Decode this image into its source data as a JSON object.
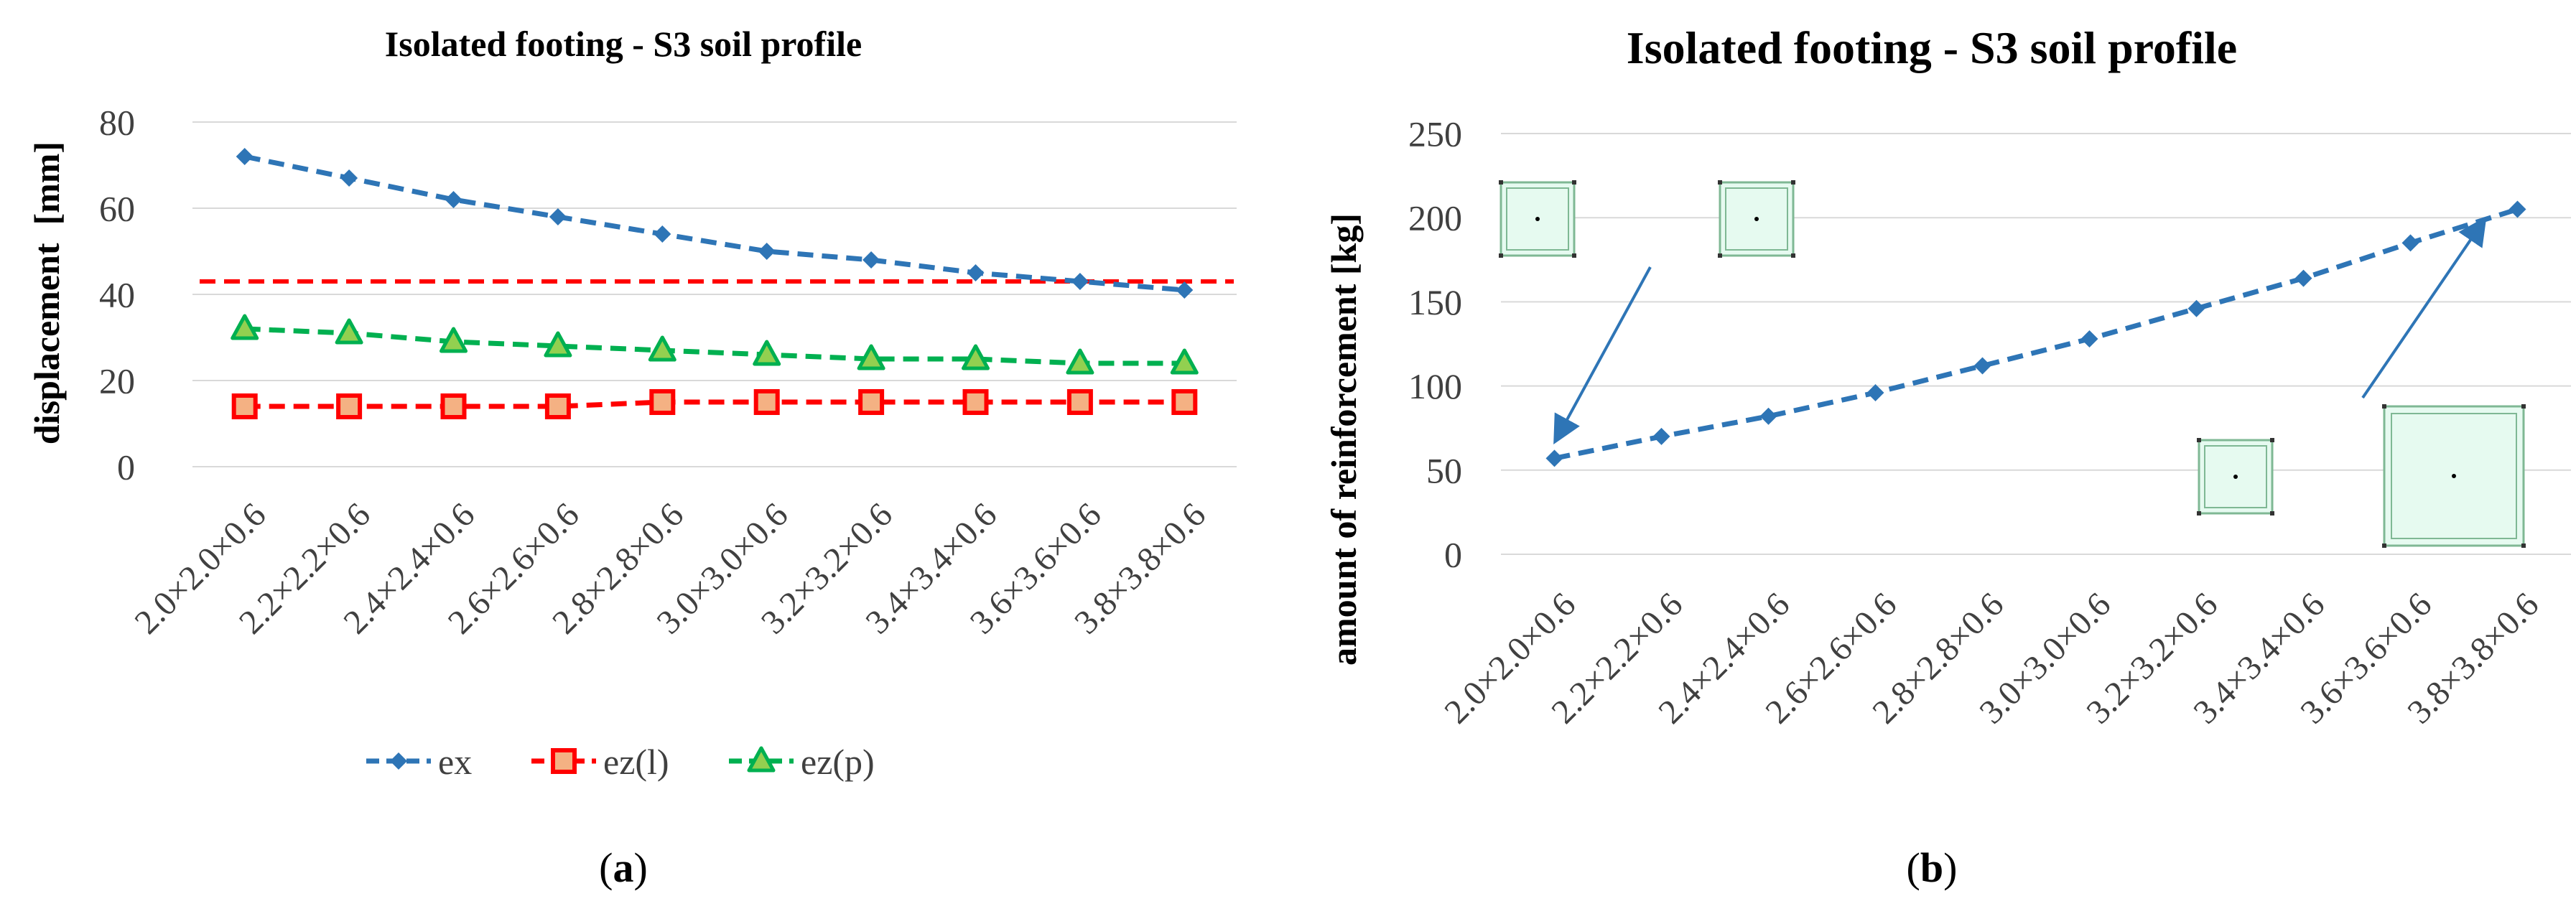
{
  "chart_data": [
    {
      "type": "line",
      "panel_label": {
        "open": "(",
        "letter": "a",
        "close": ")"
      },
      "title": "Isolated footing - S3 soil profile",
      "xlabel": "",
      "ylabel": "displacement  [mm]",
      "ylim": [
        0,
        80
      ],
      "yticks": [
        0,
        20,
        40,
        60,
        80
      ],
      "grid": true,
      "legend_position": "bottom",
      "categories": [
        "2.0×2.0×0.6",
        "2.2×2.2×0.6",
        "2.4×2.4×0.6",
        "2.6×2.6×0.6",
        "2.8×2.8×0.6",
        "3.0×3.0×0.6",
        "3.2×3.2×0.6",
        "3.4×3.4×0.6",
        "3.6×3.6×0.6",
        "3.8×3.8×0.6"
      ],
      "series": [
        {
          "name": "ex",
          "values": [
            72,
            67,
            62,
            58,
            54,
            50,
            48,
            45,
            43,
            41
          ],
          "color": "#2E75B6",
          "marker": "diamond",
          "line": "dashed"
        },
        {
          "name": "ez(l)",
          "values": [
            14,
            14,
            14,
            14,
            15,
            15,
            15,
            15,
            15,
            15
          ],
          "color": "#FF0000",
          "marker_fill": "#F4B183",
          "marker": "square",
          "line": "dashed"
        },
        {
          "name": "ez(p)",
          "values": [
            32,
            31,
            29,
            28,
            27,
            26,
            25,
            25,
            24,
            24
          ],
          "color": "#00B050",
          "marker_fill": "#92D050",
          "marker": "triangle",
          "line": "dashed"
        }
      ],
      "reference_lines": [
        {
          "value": 43,
          "color": "#FF0000",
          "line": "dashed"
        }
      ]
    },
    {
      "type": "line",
      "panel_label": {
        "open": "(",
        "letter": "b",
        "close": ")"
      },
      "title": "Isolated footing - S3 soil profile",
      "xlabel": "",
      "ylabel": "amount of reinforcement [kg]",
      "ylim": [
        0,
        250
      ],
      "yticks": [
        0,
        50,
        100,
        150,
        200,
        250
      ],
      "grid": true,
      "categories": [
        "2.0×2.0×0.6",
        "2.2×2.2×0.6",
        "2.4×2.4×0.6",
        "2.6×2.6×0.6",
        "2.8×2.8×0.6",
        "3.0×3.0×0.6",
        "3.2×3.2×0.6",
        "3.4×3.4×0.6",
        "3.6×3.6×0.6",
        "3.8×3.8×0.6"
      ],
      "series": [
        {
          "name": "reinforcement",
          "values": [
            57,
            70,
            82,
            96,
            112,
            128,
            146,
            164,
            185,
            205
          ],
          "color": "#2E75B6",
          "marker": "diamond",
          "line": "dashed"
        }
      ],
      "annotations": [
        {
          "kind": "footing-plan-icon",
          "size": "small"
        },
        {
          "kind": "footing-plan-icon",
          "size": "small"
        },
        {
          "kind": "footing-plan-icon",
          "size": "small"
        },
        {
          "kind": "footing-plan-icon",
          "size": "large"
        },
        {
          "kind": "arrow",
          "points_to_category": "2.0×2.0×0.6"
        },
        {
          "kind": "arrow",
          "points_to_category": "3.8×3.8×0.6"
        }
      ]
    }
  ]
}
